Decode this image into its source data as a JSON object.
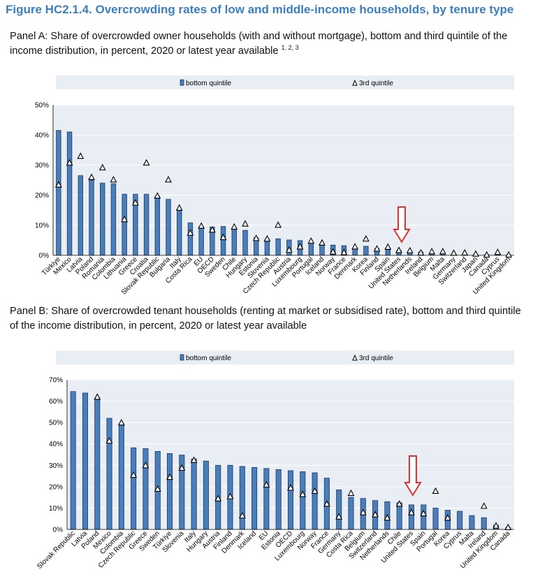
{
  "figure_title": "Figure HC2.1.4. Overcrowding rates of low and middle-income households, by tenure type",
  "panelA": {
    "title": "Panel A: Share of overcrowded owner households (with and without mortgage), bottom and third quintile of the income distribution, in percent, 2020 or latest year available",
    "footnote_refs": "1, 2, 3"
  },
  "panelB": {
    "title": "Panel B: Share of overcrowded tenant households (renting at market or subsidised rate), bottom and third quintile of the income distribution, in percent, 2020 or latest year available"
  },
  "colors": {
    "bar": "#4a7ebb",
    "bar_edge": "#1f3a60",
    "plot_bg": "#e9edf4",
    "legend_bg": "#e9edf4",
    "arrow": "#e03030",
    "title": "#3a7fc1"
  },
  "chart_data": [
    {
      "type": "bar",
      "name": "panelA",
      "categories": [
        "Türkiye",
        "Mexico",
        "Latvia",
        "Poland",
        "Romania",
        "Colombia",
        "Lithuania",
        "Greece",
        "Croatia",
        "Slovak Republic",
        "Bulgaria",
        "Italy",
        "Costa Rica",
        "EU",
        "OECD",
        "Sweden",
        "Chile",
        "Hungary",
        "Estonia",
        "Slovenia",
        "Czech Republic",
        "Austria",
        "Luxembourg",
        "Portugal",
        "Iceland",
        "Norway",
        "France",
        "Denmark",
        "Korea",
        "Finland",
        "Spain",
        "United States",
        "Netherlands",
        "Ireland",
        "Belgium",
        "Malta",
        "Germany",
        "Switzerland",
        "Japan",
        "Canada",
        "Cyprus",
        "United Kingdom"
      ],
      "series": [
        {
          "name": "bottom quintile",
          "kind": "bar",
          "values": [
            41.5,
            41,
            26.5,
            25,
            24,
            23.8,
            20.3,
            20.3,
            20.3,
            19.6,
            18.6,
            15,
            10.8,
            9.5,
            9.4,
            9.6,
            9,
            8.3,
            5.8,
            5.3,
            5.5,
            5.1,
            4.9,
            4.3,
            3.8,
            3.4,
            3.2,
            2.5,
            3,
            2.2,
            1.9,
            1.6,
            1.3,
            1.1,
            0.8,
            0.8,
            0.5,
            0.5,
            0.3,
            0.2,
            0.2,
            0.1
          ]
        },
        {
          "name": "3rd quintile",
          "kind": "marker",
          "values": [
            23.5,
            30.8,
            33,
            26,
            29.2,
            25.2,
            12,
            17.5,
            30.8,
            19.8,
            25.2,
            15.8,
            7.5,
            9.8,
            8.5,
            6,
            9.5,
            10.5,
            5.7,
            5.5,
            10.1,
            1.8,
            2.9,
            4.8,
            4.2,
            1.2,
            1,
            2.9,
            5.5,
            2.2,
            2.8,
            1.7,
            1.6,
            0.9,
            1.3,
            1.3,
            0.8,
            0.9,
            0.5,
            0.2,
            1.1,
            0.2
          ]
        }
      ],
      "yticks": [
        "0%",
        "10%",
        "20%",
        "30%",
        "40%",
        "50%"
      ],
      "ylim": [
        0,
        50
      ],
      "legend_position": "top",
      "annotation": {
        "kind": "down-arrow",
        "category": "United States"
      }
    },
    {
      "type": "bar",
      "name": "panelB",
      "categories": [
        "Slovak Republic",
        "Latvia",
        "Poland",
        "Mexico",
        "Colombia",
        "Czech Republic",
        "Greece",
        "Sweden",
        "Türkiye",
        "Slovenia",
        "Italy",
        "Hungary",
        "Austria",
        "Finland",
        "Denmark",
        "Iceland",
        "EU",
        "Estonia",
        "OECD",
        "Luxembourg",
        "Norway",
        "France",
        "Germany",
        "Costa Rica",
        "Belgium",
        "Switzerland",
        "Netherlands",
        "Chile",
        "United States",
        "Spain",
        "Portugal",
        "Korea",
        "Cyprus",
        "Malta",
        "Ireland",
        "United Kingdom",
        "Canada"
      ],
      "series": [
        {
          "name": "bottom quintile",
          "kind": "bar",
          "values": [
            64.5,
            63.8,
            61.5,
            52,
            49.5,
            38.2,
            37.8,
            36.5,
            35.5,
            34.8,
            33,
            32,
            30,
            30,
            29.5,
            29,
            28.5,
            28,
            27.5,
            27,
            26.5,
            24,
            18.5,
            15,
            14.5,
            13.5,
            13,
            12.5,
            11.5,
            11.5,
            10,
            9,
            8.5,
            6.5,
            5.5,
            2,
            0.8
          ]
        },
        {
          "name": "3rd quintile",
          "kind": "marker",
          "values": [
            null,
            null,
            62,
            41.5,
            50,
            25.5,
            30,
            19,
            24.5,
            28.8,
            32.5,
            null,
            14.5,
            15.5,
            6.5,
            null,
            21,
            null,
            19.5,
            16.5,
            18,
            12,
            6,
            17,
            8,
            7,
            5.5,
            12,
            8,
            7.5,
            18,
            5.5,
            null,
            null,
            11,
            1.8,
            1
          ]
        }
      ],
      "yticks": [
        "0%",
        "10%",
        "20%",
        "30%",
        "40%",
        "50%",
        "60%",
        "70%"
      ],
      "ylim": [
        0,
        70
      ],
      "legend_position": "top",
      "annotation": {
        "kind": "down-arrow",
        "category": "United States"
      }
    }
  ]
}
